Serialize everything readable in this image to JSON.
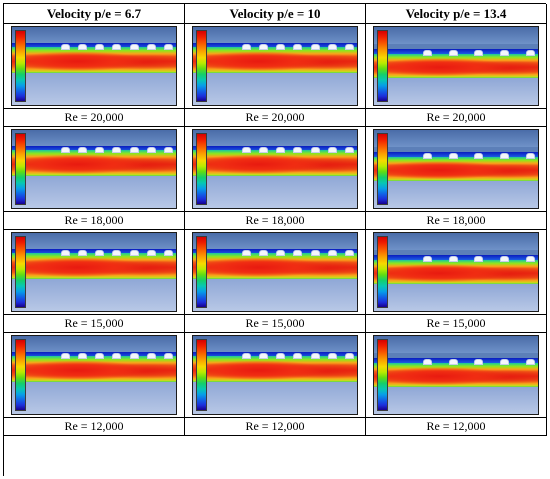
{
  "table": {
    "headers": [
      "Velocity p/e = 6.7",
      "Velocity p/e = 10",
      "Velocity p/e = 13.4"
    ],
    "rows": [
      {
        "label": "Re = 20,000"
      },
      {
        "label": "Re = 18,000"
      },
      {
        "label": "Re = 15,000"
      },
      {
        "label": "Re = 12,000"
      }
    ]
  },
  "contour_colors": {
    "high": "#d60000",
    "mid": "#f7d800",
    "low": "#18008f",
    "background": "#5c7fb8"
  }
}
